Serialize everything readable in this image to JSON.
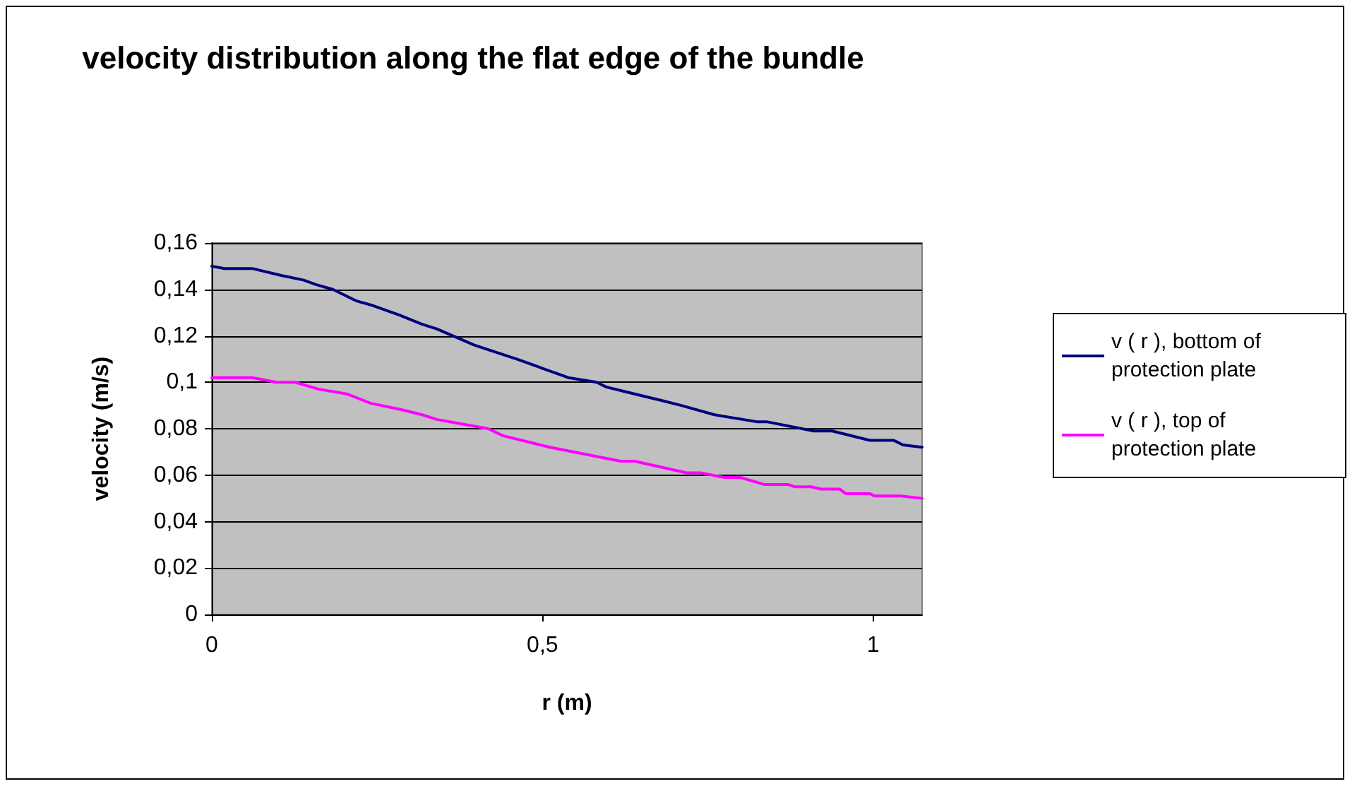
{
  "chart_data": {
    "type": "line",
    "title": "velocity distribution along the flat edge of the bundle",
    "xlabel": "r (m)",
    "ylabel": "velocity (m/s)",
    "xlim": [
      0,
      1.074
    ],
    "xticks": [
      0,
      {
        "value": 0.5,
        "label": "0,5"
      },
      1
    ],
    "ylim": [
      0,
      0.16
    ],
    "yticks": [
      0,
      {
        "value": 0.02,
        "label": "0,02"
      },
      {
        "value": 0.04,
        "label": "0,04"
      },
      {
        "value": 0.06,
        "label": "0,06"
      },
      {
        "value": 0.08,
        "label": "0,08"
      },
      {
        "value": 0.1,
        "label": "0,1"
      },
      {
        "value": 0.12,
        "label": "0,12"
      },
      {
        "value": 0.14,
        "label": "0,14"
      },
      {
        "value": 0.16,
        "label": "0,16"
      }
    ],
    "grid": "y",
    "legend": "right",
    "marker": "none",
    "line_style": "solid",
    "series": [
      {
        "name": "v ( r ), bottom of protection plate",
        "color": "#000080",
        "x": [
          0,
          0.019,
          0.061,
          0.105,
          0.139,
          0.158,
          0.183,
          0.219,
          0.244,
          0.283,
          0.318,
          0.34,
          0.397,
          0.418,
          0.461,
          0.5,
          0.539,
          0.582,
          0.596,
          0.639,
          0.682,
          0.71,
          0.76,
          0.824,
          0.839,
          0.91,
          0.938,
          0.995,
          1.031,
          1.045,
          1.074
        ],
        "values": [
          0.15,
          0.149,
          0.149,
          0.146,
          0.144,
          0.142,
          0.14,
          0.135,
          0.133,
          0.129,
          0.125,
          0.123,
          0.116,
          0.114,
          0.11,
          0.106,
          0.102,
          0.1,
          0.098,
          0.095,
          0.092,
          0.09,
          0.086,
          0.083,
          0.083,
          0.079,
          0.079,
          0.075,
          0.075,
          0.073,
          0.072
        ]
      },
      {
        "name": "v ( r ), top of protection plate",
        "color": "#ff00ff",
        "x": [
          0,
          0.061,
          0.098,
          0.126,
          0.162,
          0.204,
          0.24,
          0.29,
          0.318,
          0.34,
          0.418,
          0.44,
          0.511,
          0.618,
          0.639,
          0.718,
          0.739,
          0.775,
          0.799,
          0.835,
          0.871,
          0.881,
          0.906,
          0.921,
          0.949,
          0.959,
          0.995,
          1.002,
          1.042,
          1.074
        ],
        "values": [
          0.102,
          0.102,
          0.1,
          0.1,
          0.097,
          0.095,
          0.091,
          0.088,
          0.086,
          0.084,
          0.08,
          0.077,
          0.072,
          0.066,
          0.066,
          0.061,
          0.061,
          0.059,
          0.059,
          0.056,
          0.056,
          0.055,
          0.055,
          0.054,
          0.054,
          0.052,
          0.052,
          0.051,
          0.051,
          0.05
        ]
      }
    ]
  }
}
